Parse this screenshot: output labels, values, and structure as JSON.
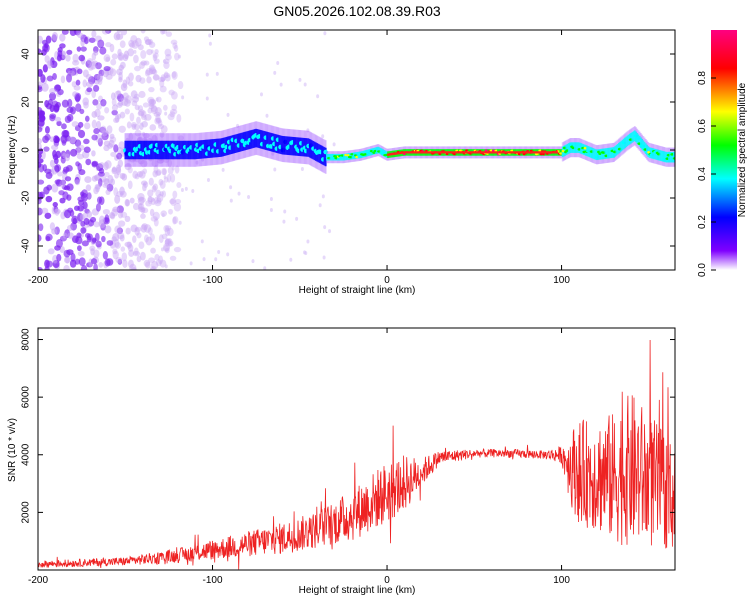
{
  "figure": {
    "title": "GN05.2026.102.08.39.R03"
  },
  "chart_data": [
    {
      "type": "heatmap",
      "title": "GN05.2026.102.08.39.R03",
      "xlabel": "Height of straight line (km)",
      "ylabel": "Frequency (Hz)",
      "xlim": [
        -200,
        165
      ],
      "ylim": [
        -50,
        50
      ],
      "xticks": [
        -200,
        -100,
        0,
        100
      ],
      "xtick_labels": [
        "-200",
        "-100",
        "0",
        "100"
      ],
      "yticks": [
        -40,
        -20,
        0,
        20,
        40
      ],
      "ytick_labels": [
        "-40",
        "-20",
        "0",
        "20",
        "40"
      ],
      "colorbar": {
        "label": "Normalized spectral amplitude",
        "range": [
          0,
          1
        ],
        "ticks": [
          0.0,
          0.2,
          0.4,
          0.6,
          0.8
        ],
        "tick_labels": [
          "0.0",
          "0.2",
          "0.4",
          "0.6",
          "0.8"
        ],
        "colors": [
          "#ffffff",
          "#8000ff",
          "#0000ff",
          "#00ffff",
          "#00ff00",
          "#ffff00",
          "#ff0000",
          "#ff0080"
        ]
      },
      "ridge": {
        "x": [
          -150,
          -130,
          -110,
          -95,
          -85,
          -75,
          -60,
          -45,
          -35,
          -25,
          -15,
          -5,
          0,
          10,
          30,
          60,
          90,
          100,
          105,
          110,
          120,
          130,
          138,
          142,
          150,
          160,
          165
        ],
        "frequency": [
          0,
          0,
          0,
          1,
          3,
          5,
          2,
          1,
          -3,
          -3,
          -2,
          0,
          -2,
          -1,
          -1,
          -1,
          -1,
          -1,
          1,
          1,
          -2,
          -1,
          4,
          6,
          -1,
          -3,
          -3
        ]
      },
      "noise_region_x": [
        -200,
        -150
      ]
    },
    {
      "type": "line",
      "xlabel": "Height of straight line (km)",
      "ylabel": "SNR (10 * v/v)",
      "xlim": [
        -200,
        165
      ],
      "ylim": [
        0,
        8400
      ],
      "xticks": [
        -200,
        -100,
        0,
        100
      ],
      "xtick_labels": [
        "-200",
        "-100",
        "0",
        "100"
      ],
      "yticks": [
        2000,
        4000,
        6000,
        8000
      ],
      "ytick_labels": [
        "2000",
        "4000",
        "6000",
        "8000"
      ],
      "color": "#ee2222",
      "envelope": {
        "x": [
          -200,
          -150,
          -120,
          -100,
          -80,
          -60,
          -40,
          -20,
          -10,
          0,
          10,
          20,
          30,
          50,
          70,
          90,
          100,
          105,
          110,
          120,
          130,
          140,
          150,
          165
        ],
        "mean": [
          200,
          300,
          500,
          700,
          900,
          1100,
          1400,
          1900,
          2300,
          2700,
          3000,
          3400,
          3900,
          4050,
          4050,
          4000,
          4000,
          3600,
          3400,
          3300,
          3200,
          3500,
          3100,
          2500
        ],
        "amplitude": [
          120,
          150,
          250,
          350,
          450,
          550,
          650,
          900,
          1000,
          1100,
          1000,
          500,
          250,
          150,
          150,
          150,
          300,
          1300,
          1800,
          2000,
          2300,
          2700,
          2400,
          1800
        ]
      }
    }
  ]
}
